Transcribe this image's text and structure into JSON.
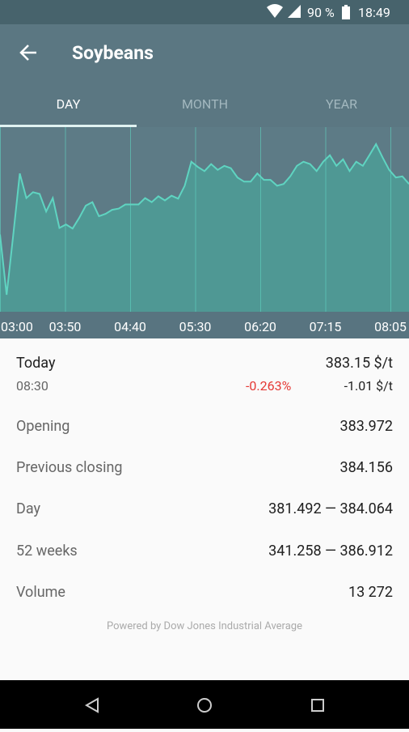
{
  "status_bar": {
    "battery": "90 %",
    "time": "18:49"
  },
  "header": {
    "title": "Soybeans"
  },
  "tabs": [
    "DAY",
    "MONTH",
    "YEAR"
  ],
  "chart_data": {
    "type": "area",
    "xticks": [
      "03:00",
      "03:50",
      "04:40",
      "05:30",
      "06:20",
      "07:15",
      "08:05"
    ],
    "values": [
      382.52,
      381.49,
      382.5,
      383.56,
      383.14,
      383.24,
      383.21,
      382.91,
      383.14,
      382.63,
      382.69,
      382.62,
      382.8,
      383.01,
      383.07,
      382.83,
      382.87,
      382.94,
      382.96,
      383.03,
      383.03,
      383.03,
      383.14,
      383.07,
      383.17,
      383.1,
      383.18,
      383.13,
      383.35,
      383.76,
      383.67,
      383.6,
      383.72,
      383.62,
      383.69,
      383.65,
      383.49,
      383.42,
      383.42,
      383.56,
      383.45,
      383.45,
      383.35,
      383.38,
      383.51,
      383.69,
      383.76,
      383.72,
      383.6,
      383.76,
      383.87,
      383.69,
      383.8,
      383.6,
      383.76,
      383.69,
      383.87,
      384.06,
      383.83,
      383.62,
      383.49,
      383.51,
      383.38
    ],
    "ylim": [
      381.2,
      384.35
    ],
    "color": "#5fd4c1",
    "grid": true
  },
  "summary": {
    "label": "Today",
    "time": "08:30",
    "price": "383.15 $/t",
    "change_percent": "-0.263%",
    "change": "-1.01 $/t"
  },
  "details": [
    {
      "label": "Opening",
      "value": "383.972"
    },
    {
      "label": "Previous closing",
      "value": "384.156"
    },
    {
      "label": "Day",
      "value": "381.492 — 384.064"
    },
    {
      "label": "52 weeks",
      "value": "341.258 — 386.912"
    },
    {
      "label": "Volume",
      "value": "13 272"
    }
  ],
  "footer": "Powered by Dow Jones Industrial Average"
}
